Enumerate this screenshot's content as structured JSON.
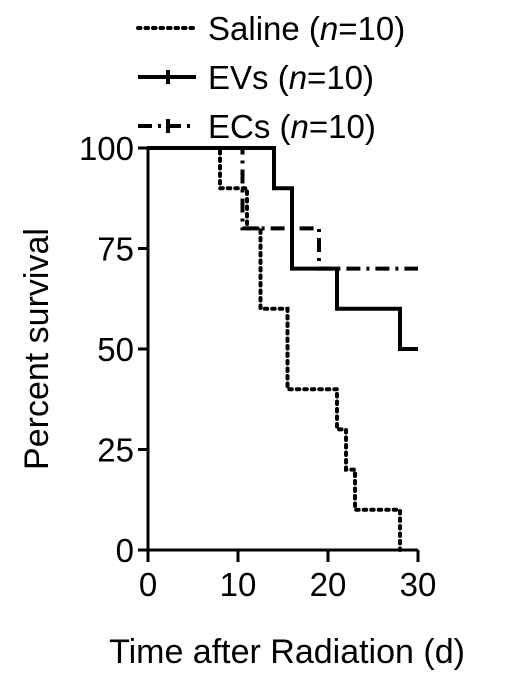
{
  "chart_data": {
    "type": "line",
    "subtype": "kaplan-meier step survival",
    "title": "",
    "xlabel": "Time after Radiation (d)",
    "ylabel": "Percent survival",
    "xlim": [
      0,
      30
    ],
    "ylim": [
      0,
      100
    ],
    "xticks": [
      "0",
      "10",
      "20",
      "30"
    ],
    "yticks": [
      "0",
      "25",
      "50",
      "75",
      "100"
    ],
    "grid": false,
    "legend_position": "top",
    "series": [
      {
        "name": "Saline (n=10)",
        "name_prefix": "Saline (",
        "name_italic": "n",
        "name_suffix": "=10)",
        "line_style": "dotted",
        "color": "#000000",
        "points": [
          [
            0,
            100
          ],
          [
            8,
            100
          ],
          [
            8,
            90
          ],
          [
            11,
            90
          ],
          [
            11,
            80
          ],
          [
            12.5,
            80
          ],
          [
            12.5,
            60
          ],
          [
            15.5,
            60
          ],
          [
            15.5,
            40
          ],
          [
            21,
            40
          ],
          [
            21,
            30
          ],
          [
            22,
            30
          ],
          [
            22,
            20
          ],
          [
            23,
            20
          ],
          [
            23,
            10
          ],
          [
            28,
            10
          ],
          [
            28,
            0
          ]
        ]
      },
      {
        "name": "EVs (n=10)",
        "name_prefix": "EVs (",
        "name_italic": "n",
        "name_suffix": "=10)",
        "line_style": "solid",
        "color": "#000000",
        "points": [
          [
            0,
            100
          ],
          [
            14,
            100
          ],
          [
            14,
            90
          ],
          [
            16,
            90
          ],
          [
            16,
            70
          ],
          [
            21,
            70
          ],
          [
            21,
            60
          ],
          [
            28,
            60
          ],
          [
            28,
            50
          ],
          [
            30,
            50
          ]
        ]
      },
      {
        "name": "ECs (n=10)",
        "name_prefix": "ECs (",
        "name_italic": "n",
        "name_suffix": "=10)",
        "line_style": "dash-dot",
        "color": "#000000",
        "points": [
          [
            0,
            100
          ],
          [
            10.5,
            100
          ],
          [
            10.5,
            80
          ],
          [
            19,
            80
          ],
          [
            19,
            70
          ],
          [
            30,
            70
          ]
        ]
      }
    ]
  }
}
